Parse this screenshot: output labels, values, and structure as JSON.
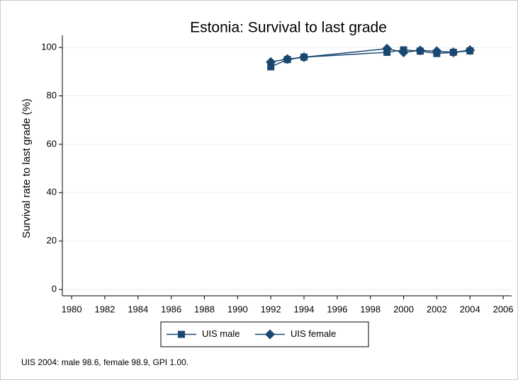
{
  "chart_data": {
    "type": "line",
    "title": "Estonia: Survival to last grade",
    "ylabel": "Survival rate to last grade (%)",
    "note": "UIS 2004: male 98.6, female 98.9, GPI 1.00.",
    "x": [
      1992,
      1993,
      1994,
      1999,
      2000,
      2001,
      2002,
      2003,
      2004
    ],
    "series": [
      {
        "name": "UIS male",
        "color": "#1a476f",
        "marker": "square",
        "values": [
          92,
          95,
          96,
          98,
          99,
          98.5,
          97.5,
          98,
          98.6
        ]
      },
      {
        "name": "UIS female",
        "color": "#1a476f",
        "marker": "diamond",
        "values": [
          94,
          95.2,
          96,
          99.5,
          98,
          98.8,
          98.5,
          98,
          98.9
        ]
      }
    ],
    "xlim": [
      1979.44,
      2006.51
    ],
    "xticks": [
      1980,
      1982,
      1984,
      1986,
      1988,
      1990,
      1992,
      1994,
      1996,
      1998,
      2000,
      2002,
      2004,
      2006
    ],
    "ylim": [
      -2.6,
      105
    ],
    "yticks": [
      0,
      20,
      40,
      60,
      80,
      100
    ],
    "grid": true,
    "legend": "bottom"
  }
}
